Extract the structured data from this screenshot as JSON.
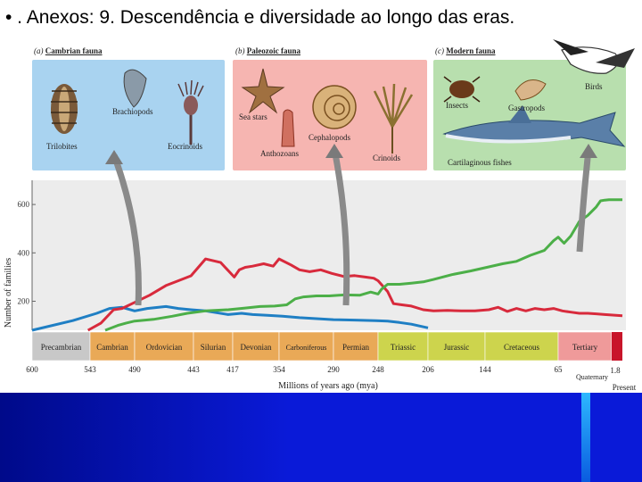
{
  "slide": {
    "title": "• . Anexos: 9. Descendência e diversidade ao longo das eras."
  },
  "panels": [
    {
      "key": "cambrian",
      "title": "Cambrian fauna",
      "prefix": "(a)",
      "color": "#a9d3f0",
      "labels": [
        "Brachiopods",
        "Trilobites",
        "Eocrinoids"
      ]
    },
    {
      "key": "paleozoic",
      "title": "Paleozoic fauna",
      "prefix": "(b)",
      "color": "#f6b5b1",
      "labels": [
        "Sea stars",
        "Cephalopods",
        "Anthozoans",
        "Crinoids"
      ]
    },
    {
      "key": "modern",
      "title": "Modern fauna",
      "prefix": "(c)",
      "color": "#b8dfae",
      "labels": [
        "Birds",
        "Insects",
        "Gastropods",
        "Cartilaginous fishes"
      ]
    }
  ],
  "colors": {
    "cambrian": "#1f7fc4",
    "paleozoic": "#d82a3c",
    "modern": "#4caf48",
    "plot_bg": "#ececec",
    "slide_bg": "#0a1ad8"
  },
  "chart_data": {
    "type": "line",
    "xlabel": "Millions of years ago (mya)",
    "ylabel": "Number of families",
    "x_reversed": true,
    "xlim": [
      600,
      0
    ],
    "ylim": [
      80,
      700
    ],
    "yticks": [
      200,
      400,
      600
    ],
    "xticks": [
      "600",
      "543",
      "490",
      "443",
      "417",
      "354",
      "290",
      "248",
      "206",
      "144",
      "65",
      "1.8",
      "Present"
    ],
    "xtick_values": [
      600,
      543,
      490,
      443,
      417,
      354,
      290,
      248,
      206,
      144,
      65,
      1.8,
      0
    ],
    "grid": false,
    "series": [
      {
        "name": "Cambrian fauna",
        "color_key": "cambrian",
        "points": [
          [
            600,
            80
          ],
          [
            560,
            120
          ],
          [
            535,
            150
          ],
          [
            520,
            170
          ],
          [
            505,
            175
          ],
          [
            490,
            160
          ],
          [
            480,
            170
          ],
          [
            465,
            178
          ],
          [
            455,
            170
          ],
          [
            445,
            165
          ],
          [
            435,
            160
          ],
          [
            420,
            145
          ],
          [
            405,
            150
          ],
          [
            390,
            145
          ],
          [
            370,
            142
          ],
          [
            350,
            138
          ],
          [
            330,
            132
          ],
          [
            310,
            128
          ],
          [
            290,
            124
          ],
          [
            270,
            122
          ],
          [
            250,
            120
          ],
          [
            240,
            118
          ],
          [
            230,
            112
          ],
          [
            220,
            105
          ],
          [
            206,
            90
          ]
        ]
      },
      {
        "name": "Paleozoic fauna",
        "color_key": "paleozoic",
        "points": [
          [
            545,
            80
          ],
          [
            530,
            110
          ],
          [
            515,
            165
          ],
          [
            505,
            170
          ],
          [
            490,
            195
          ],
          [
            478,
            225
          ],
          [
            465,
            265
          ],
          [
            455,
            285
          ],
          [
            445,
            305
          ],
          [
            435,
            375
          ],
          [
            425,
            360
          ],
          [
            415,
            300
          ],
          [
            408,
            330
          ],
          [
            400,
            340
          ],
          [
            390,
            345
          ],
          [
            375,
            355
          ],
          [
            362,
            345
          ],
          [
            354,
            375
          ],
          [
            340,
            350
          ],
          [
            330,
            330
          ],
          [
            318,
            322
          ],
          [
            305,
            330
          ],
          [
            292,
            315
          ],
          [
            280,
            302
          ],
          [
            270,
            306
          ],
          [
            260,
            300
          ],
          [
            252,
            295
          ],
          [
            248,
            285
          ],
          [
            240,
            240
          ],
          [
            235,
            190
          ],
          [
            228,
            185
          ],
          [
            220,
            180
          ],
          [
            210,
            165
          ],
          [
            200,
            160
          ],
          [
            185,
            162
          ],
          [
            170,
            160
          ],
          [
            155,
            160
          ],
          [
            140,
            165
          ],
          [
            130,
            175
          ],
          [
            120,
            158
          ],
          [
            110,
            170
          ],
          [
            100,
            160
          ],
          [
            90,
            170
          ],
          [
            80,
            165
          ],
          [
            70,
            170
          ],
          [
            60,
            160
          ],
          [
            50,
            155
          ],
          [
            40,
            150
          ],
          [
            30,
            150
          ],
          [
            20,
            148
          ],
          [
            10,
            145
          ],
          [
            0,
            140
          ]
        ]
      },
      {
        "name": "Modern fauna",
        "color_key": "modern",
        "points": [
          [
            525,
            80
          ],
          [
            510,
            100
          ],
          [
            500,
            110
          ],
          [
            490,
            118
          ],
          [
            475,
            125
          ],
          [
            460,
            138
          ],
          [
            448,
            150
          ],
          [
            435,
            160
          ],
          [
            420,
            165
          ],
          [
            400,
            172
          ],
          [
            380,
            178
          ],
          [
            360,
            180
          ],
          [
            345,
            185
          ],
          [
            335,
            210
          ],
          [
            325,
            218
          ],
          [
            310,
            222
          ],
          [
            295,
            222
          ],
          [
            280,
            226
          ],
          [
            265,
            225
          ],
          [
            255,
            238
          ],
          [
            248,
            230
          ],
          [
            245,
            250
          ],
          [
            240,
            270
          ],
          [
            230,
            270
          ],
          [
            220,
            275
          ],
          [
            210,
            280
          ],
          [
            200,
            290
          ],
          [
            180,
            310
          ],
          [
            160,
            325
          ],
          [
            140,
            342
          ],
          [
            125,
            355
          ],
          [
            110,
            365
          ],
          [
            95,
            390
          ],
          [
            80,
            410
          ],
          [
            70,
            450
          ],
          [
            65,
            465
          ],
          [
            58,
            440
          ],
          [
            50,
            470
          ],
          [
            40,
            530
          ],
          [
            30,
            555
          ],
          [
            20,
            590
          ],
          [
            15,
            615
          ],
          [
            10,
            618
          ],
          [
            5,
            620
          ],
          [
            0,
            620
          ]
        ]
      }
    ],
    "periods": [
      {
        "name": "Precambrian",
        "start": 600,
        "end": 543,
        "color": "#c8c8c8"
      },
      {
        "name": "Cambrian",
        "start": 543,
        "end": 490,
        "color": "#e9a957"
      },
      {
        "name": "Ordovician",
        "start": 490,
        "end": 443,
        "color": "#e9a957"
      },
      {
        "name": "Silurian",
        "start": 443,
        "end": 417,
        "color": "#e9a957"
      },
      {
        "name": "Devonian",
        "start": 417,
        "end": 354,
        "color": "#e9a957"
      },
      {
        "name": "Carboniferous",
        "start": 354,
        "end": 290,
        "color": "#e9a957"
      },
      {
        "name": "Permian",
        "start": 290,
        "end": 248,
        "color": "#e9a957"
      },
      {
        "name": "Triassic",
        "start": 248,
        "end": 206,
        "color": "#cdd44d"
      },
      {
        "name": "Jurassic",
        "start": 206,
        "end": 144,
        "color": "#cdd44d"
      },
      {
        "name": "Cretaceous",
        "start": 144,
        "end": 65,
        "color": "#cdd44d"
      },
      {
        "name": "Tertiary",
        "start": 65,
        "end": 1.8,
        "color": "#ef9a9a"
      },
      {
        "name": "Quaternary",
        "start": 1.8,
        "end": 0,
        "color": "#ef9a9a"
      }
    ]
  }
}
